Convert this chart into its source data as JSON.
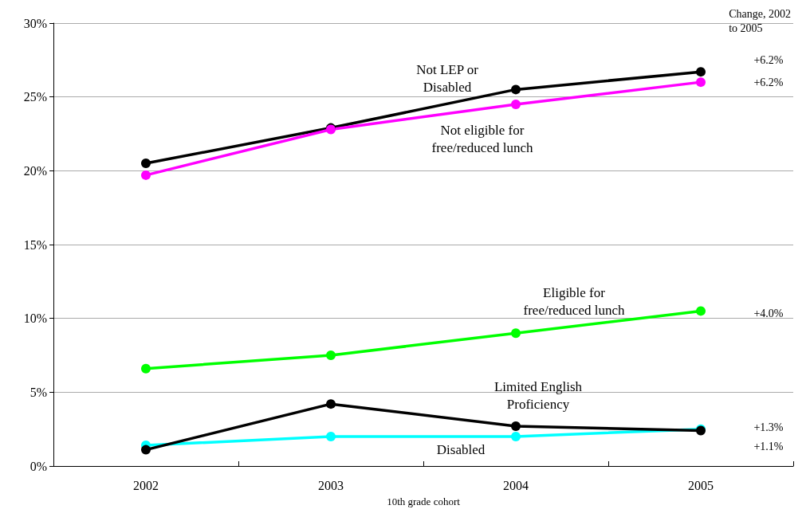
{
  "chart_data": {
    "type": "line",
    "xlabel": "10th grade cohort",
    "categories": [
      "2002",
      "2003",
      "2004",
      "2005"
    ],
    "series": [
      {
        "name": "Not LEP or\nDisabled",
        "color": "#000000",
        "values": [
          20.5,
          22.9,
          25.5,
          26.7
        ]
      },
      {
        "name": "Not eligible for\nfree/reduced lunch",
        "color": "#ff00ff",
        "values": [
          19.7,
          22.8,
          24.5,
          26.0
        ]
      },
      {
        "name": "Eligible for\nfree/reduced lunch",
        "color": "#00ff00",
        "values": [
          6.6,
          7.5,
          9.0,
          10.5
        ]
      },
      {
        "name": "Limited English\nProficiency",
        "color": "#000000",
        "values": [
          1.1,
          4.2,
          2.7,
          2.4
        ]
      },
      {
        "name": "Disabled",
        "color": "#00ffff",
        "values": [
          1.4,
          2.0,
          2.0,
          2.5
        ]
      }
    ],
    "ylim": [
      0,
      30
    ],
    "yticks": [
      {
        "value": 0,
        "label": "0%"
      },
      {
        "value": 5,
        "label": "5%"
      },
      {
        "value": 10,
        "label": "10%"
      },
      {
        "value": 15,
        "label": "15%"
      },
      {
        "value": 20,
        "label": "20%"
      },
      {
        "value": 25,
        "label": "25%"
      },
      {
        "value": 30,
        "label": "30%"
      }
    ],
    "grid": "y",
    "legend": false,
    "marker": "circle",
    "line_style": "solid",
    "annotations": [
      "Change, 2002\nto 2005",
      "+6.2%",
      "+6.2%",
      "+4.0%",
      "+1.3%",
      "+1.1%"
    ]
  }
}
